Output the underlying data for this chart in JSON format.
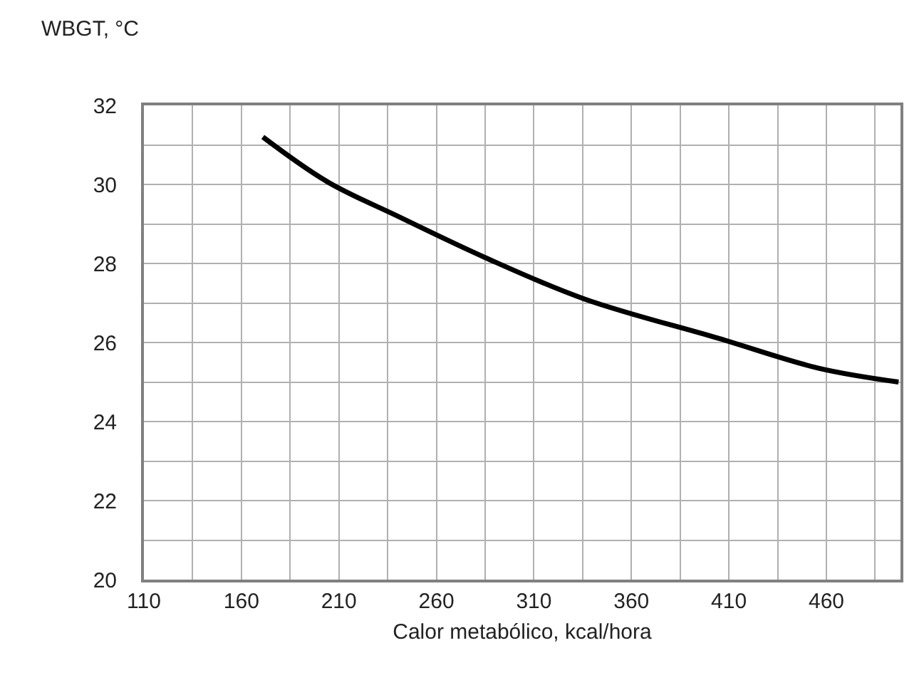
{
  "chart_data": {
    "type": "line",
    "xlabel": "Calor metabólico, kcal/hora",
    "ylabel": "WBGT, °C",
    "x": [
      171,
      204,
      240,
      285,
      336,
      405,
      456,
      497
    ],
    "series": [
      {
        "color": "#000000",
        "values": [
          31.2,
          30.07,
          29.2,
          28.15,
          27.1,
          26.1,
          25.35,
          25.0
        ]
      }
    ],
    "xlim": [
      110,
      498
    ],
    "xticks": [
      110,
      {
        "value": 135,
        "label": null
      },
      160,
      {
        "value": 185,
        "label": null
      },
      210,
      {
        "value": 235,
        "label": null
      },
      260,
      {
        "value": 285,
        "label": null
      },
      310,
      {
        "value": 335,
        "label": null
      },
      360,
      {
        "value": 385,
        "label": null
      },
      410,
      {
        "value": 435,
        "label": null
      },
      460,
      {
        "value": 485,
        "label": null
      }
    ],
    "ylim": [
      20,
      32
    ],
    "yticks": [
      20,
      {
        "value": 21,
        "label": null
      },
      22,
      {
        "value": 23,
        "label": null
      },
      24,
      {
        "value": 25,
        "label": null
      },
      26,
      {
        "value": 27,
        "label": null
      },
      28,
      {
        "value": 29,
        "label": null
      },
      30,
      {
        "value": 31,
        "label": null
      },
      32
    ],
    "grid": true,
    "marker": "none",
    "line_style": "solid"
  }
}
